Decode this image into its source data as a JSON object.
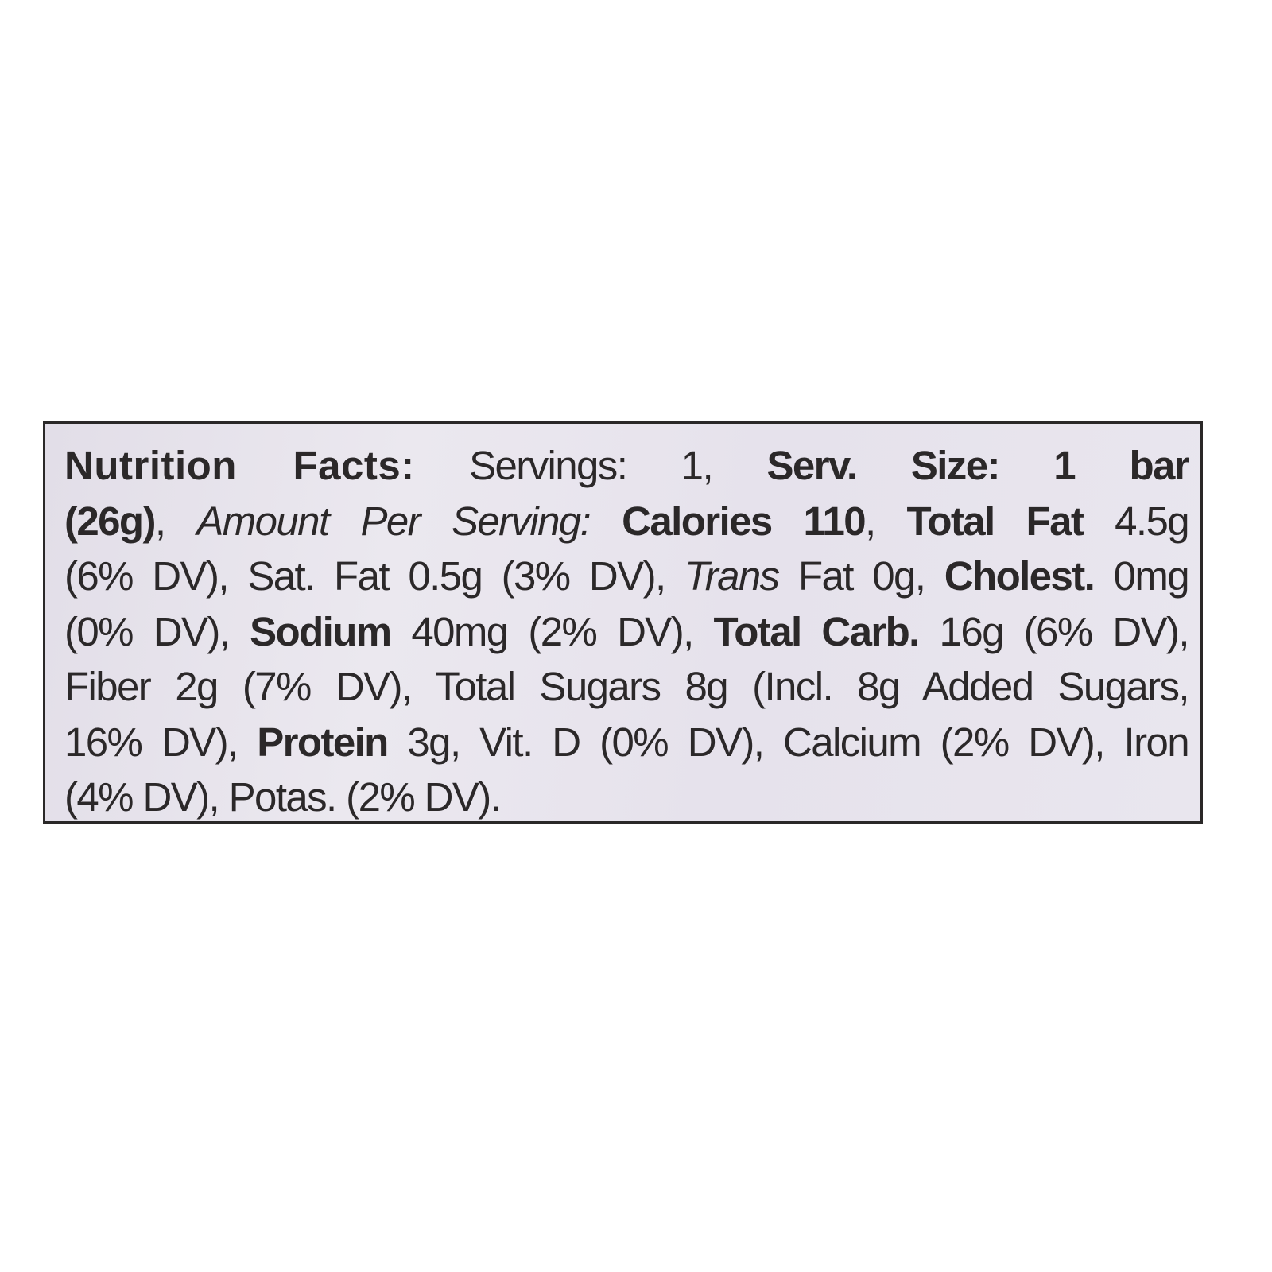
{
  "label": {
    "lines": [
      [
        {
          "t": "Nutrition Facts:",
          "s": "hb"
        },
        {
          "t": " Servings: 1, ",
          "s": ""
        },
        {
          "t": "Serv. Size: 1 bar",
          "s": "b"
        }
      ],
      [
        {
          "t": "(26g)",
          "s": "b"
        },
        {
          "t": ", ",
          "s": ""
        },
        {
          "t": "Amount Per Serving:",
          "s": "i"
        },
        {
          "t": " ",
          "s": ""
        },
        {
          "t": "Calories 110",
          "s": "b"
        },
        {
          "t": ", ",
          "s": ""
        },
        {
          "t": "Total Fat",
          "s": "b"
        },
        {
          "t": " 4.5g",
          "s": ""
        }
      ],
      [
        {
          "t": "(6% DV), Sat. Fat 0.5g (3% DV), ",
          "s": ""
        },
        {
          "t": "Trans",
          "s": "i"
        },
        {
          "t": " Fat 0g, ",
          "s": ""
        },
        {
          "t": "Cholest.",
          "s": "b"
        },
        {
          "t": " 0mg",
          "s": ""
        }
      ],
      [
        {
          "t": "(0% DV), ",
          "s": ""
        },
        {
          "t": "Sodium",
          "s": "b"
        },
        {
          "t": " 40mg (2% DV), ",
          "s": ""
        },
        {
          "t": "Total Carb.",
          "s": "b"
        },
        {
          "t": " 16g (6% DV),",
          "s": ""
        }
      ],
      [
        {
          "t": "Fiber 2g (7% DV), Total Sugars 8g (Incl. 8g Added Sugars,",
          "s": ""
        }
      ],
      [
        {
          "t": "16% DV), ",
          "s": ""
        },
        {
          "t": "Protein",
          "s": "b"
        },
        {
          "t": " 3g, Vit. D (0% DV), Calcium (2% DV), Iron",
          "s": ""
        }
      ],
      [
        {
          "t": "(4% DV), Potas. (2% DV).",
          "s": ""
        }
      ]
    ]
  },
  "colors": {
    "background": "#e6e2ec",
    "text": "#2b2829",
    "border": "#2a2828"
  }
}
